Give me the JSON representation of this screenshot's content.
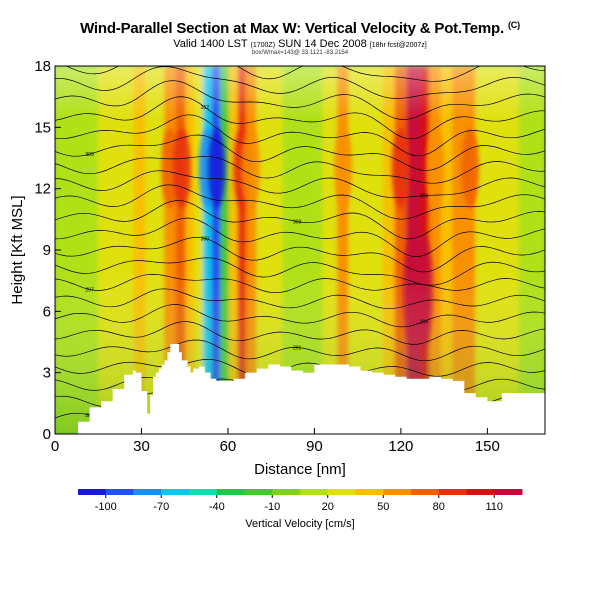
{
  "header": {
    "title": "Wind-Parallel Section at Max W: Vertical Velocity & Pot.Temp.",
    "corner_mark": "(C)",
    "valid_line": "Valid 1400 LST",
    "valid_small": "(1700Z)",
    "valid_date": "SUN 14 Dec 2008",
    "valid_run": "[18hr fcst@2007z]",
    "sub_line": "box/Wmax=143@ 33.1121 -83.2154"
  },
  "chart_data": {
    "type": "heatmap",
    "title": "Wind-Parallel Section at Max W: Vertical Velocity & Pot.Temp.",
    "xlabel": "Distance [nm]",
    "ylabel": "Height [Kft MSL]",
    "xlim": [
      0,
      170
    ],
    "ylim": [
      0,
      18
    ],
    "xticks": [
      0,
      30,
      60,
      90,
      120,
      150
    ],
    "yticks": [
      0,
      3,
      6,
      9,
      12,
      15,
      18
    ],
    "colorbar": {
      "label": "Vertical Velocity [cm/s]",
      "ticks": [
        -100,
        -70,
        -40,
        -10,
        20,
        50,
        80,
        110
      ],
      "range": [
        -115,
        125
      ],
      "colors": [
        "#1818d8",
        "#2050f0",
        "#1890f0",
        "#10c8e8",
        "#10e0b0",
        "#20c848",
        "#48c830",
        "#80d020",
        "#b0e018",
        "#e0e010",
        "#f8c000",
        "#f89000",
        "#f06000",
        "#e83010",
        "#d81010",
        "#c80838"
      ]
    },
    "columns_x": [
      0,
      10,
      20,
      25,
      30,
      33,
      36,
      40,
      44,
      47,
      50,
      53,
      56,
      59,
      62,
      65,
      68,
      72,
      76,
      82,
      90,
      96,
      100,
      104,
      108,
      112,
      116,
      120,
      124,
      126,
      128,
      132,
      136,
      140,
      144,
      148,
      152,
      158,
      164,
      170
    ],
    "columns_w": [
      10,
      15,
      20,
      25,
      40,
      20,
      30,
      60,
      75,
      45,
      20,
      -70,
      -95,
      -20,
      40,
      80,
      55,
      25,
      20,
      15,
      15,
      25,
      55,
      30,
      20,
      20,
      40,
      70,
      110,
      120,
      100,
      55,
      40,
      50,
      60,
      30,
      20,
      25,
      15,
      15
    ],
    "terrain": {
      "x": [
        0,
        3,
        8,
        12,
        16,
        20,
        24,
        27,
        28,
        30,
        32,
        33,
        34,
        35,
        36,
        37,
        38,
        39,
        40,
        42,
        43,
        44,
        46,
        47,
        48,
        50,
        52,
        54,
        56,
        58,
        62,
        66,
        70,
        74,
        78,
        82,
        86,
        90,
        94,
        98,
        102,
        106,
        110,
        114,
        118,
        122,
        126,
        130,
        134,
        138,
        142,
        146,
        150,
        155,
        160,
        165,
        170
      ],
      "y": [
        0,
        0,
        0.6,
        1.3,
        1.6,
        2.2,
        2.9,
        3.1,
        3.0,
        2.1,
        1.0,
        1.9,
        2.8,
        3.0,
        3.2,
        3.4,
        3.6,
        4.0,
        4.4,
        4.4,
        4.0,
        3.6,
        3.3,
        3.0,
        3.2,
        3.3,
        3.0,
        2.7,
        2.6,
        2.6,
        2.7,
        3.0,
        3.2,
        3.4,
        3.3,
        3.1,
        3.0,
        3.4,
        3.4,
        3.4,
        3.3,
        3.1,
        3.0,
        2.9,
        2.8,
        2.7,
        2.7,
        2.8,
        2.7,
        2.6,
        2.0,
        1.8,
        1.6,
        2.0,
        2.0,
        2.0,
        2.0
      ]
    },
    "contour_labels": [
      "285",
      "288",
      "291",
      "294",
      "297",
      "300",
      "303",
      "306",
      "309",
      "312"
    ]
  },
  "colorbar_label": "Vertical Velocity [cm/s]"
}
